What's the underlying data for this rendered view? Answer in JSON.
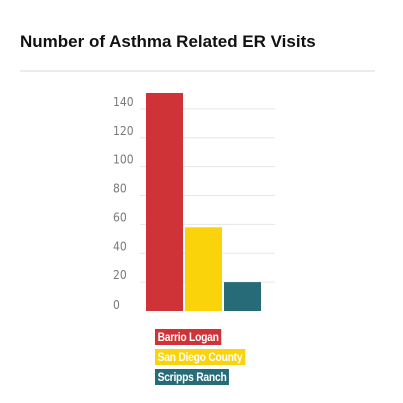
{
  "chart_data": {
    "type": "bar",
    "title": "Number of Asthma Related ER Visits",
    "categories": [
      "Barrio Logan",
      "San Diego County",
      "Scripps Ranch"
    ],
    "values": [
      151,
      58,
      20
    ],
    "colors": [
      "#cf3237",
      "#fbd30a",
      "#276b78"
    ],
    "y_ticks": [
      0,
      20,
      40,
      60,
      80,
      100,
      120,
      140
    ],
    "ylim": [
      0,
      160
    ],
    "xlabel": "",
    "ylabel": "",
    "grid": true,
    "legend_position": "bottom-center"
  }
}
